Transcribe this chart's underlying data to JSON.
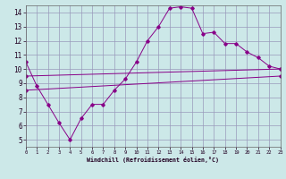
{
  "bg_color": "#cce8e8",
  "grid_color": "#9999bb",
  "line_color": "#880088",
  "xlabel": "Windchill (Refroidissement éolien,°C)",
  "xlim": [
    0,
    23
  ],
  "ylim": [
    4.5,
    14.5
  ],
  "xticks": [
    0,
    1,
    2,
    3,
    4,
    5,
    6,
    7,
    8,
    9,
    10,
    11,
    12,
    13,
    14,
    15,
    16,
    17,
    18,
    19,
    20,
    21,
    22,
    23
  ],
  "yticks": [
    5,
    6,
    7,
    8,
    9,
    10,
    11,
    12,
    13,
    14
  ],
  "series1_x": [
    0,
    1,
    2,
    3,
    4,
    5,
    6,
    7,
    8,
    9,
    10,
    11,
    12,
    13,
    14,
    15,
    16,
    17,
    18,
    19,
    20,
    21,
    22,
    23
  ],
  "series1_y": [
    10.5,
    8.8,
    7.5,
    6.2,
    5.0,
    6.5,
    7.5,
    7.5,
    8.5,
    9.3,
    10.5,
    12.0,
    13.0,
    14.3,
    14.4,
    14.3,
    12.5,
    12.6,
    11.8,
    11.8,
    11.2,
    10.8,
    10.2,
    10.0
  ],
  "series2_x": [
    0,
    23
  ],
  "series2_y": [
    9.5,
    10.0
  ],
  "series3_x": [
    0,
    23
  ],
  "series3_y": [
    8.5,
    9.5
  ]
}
